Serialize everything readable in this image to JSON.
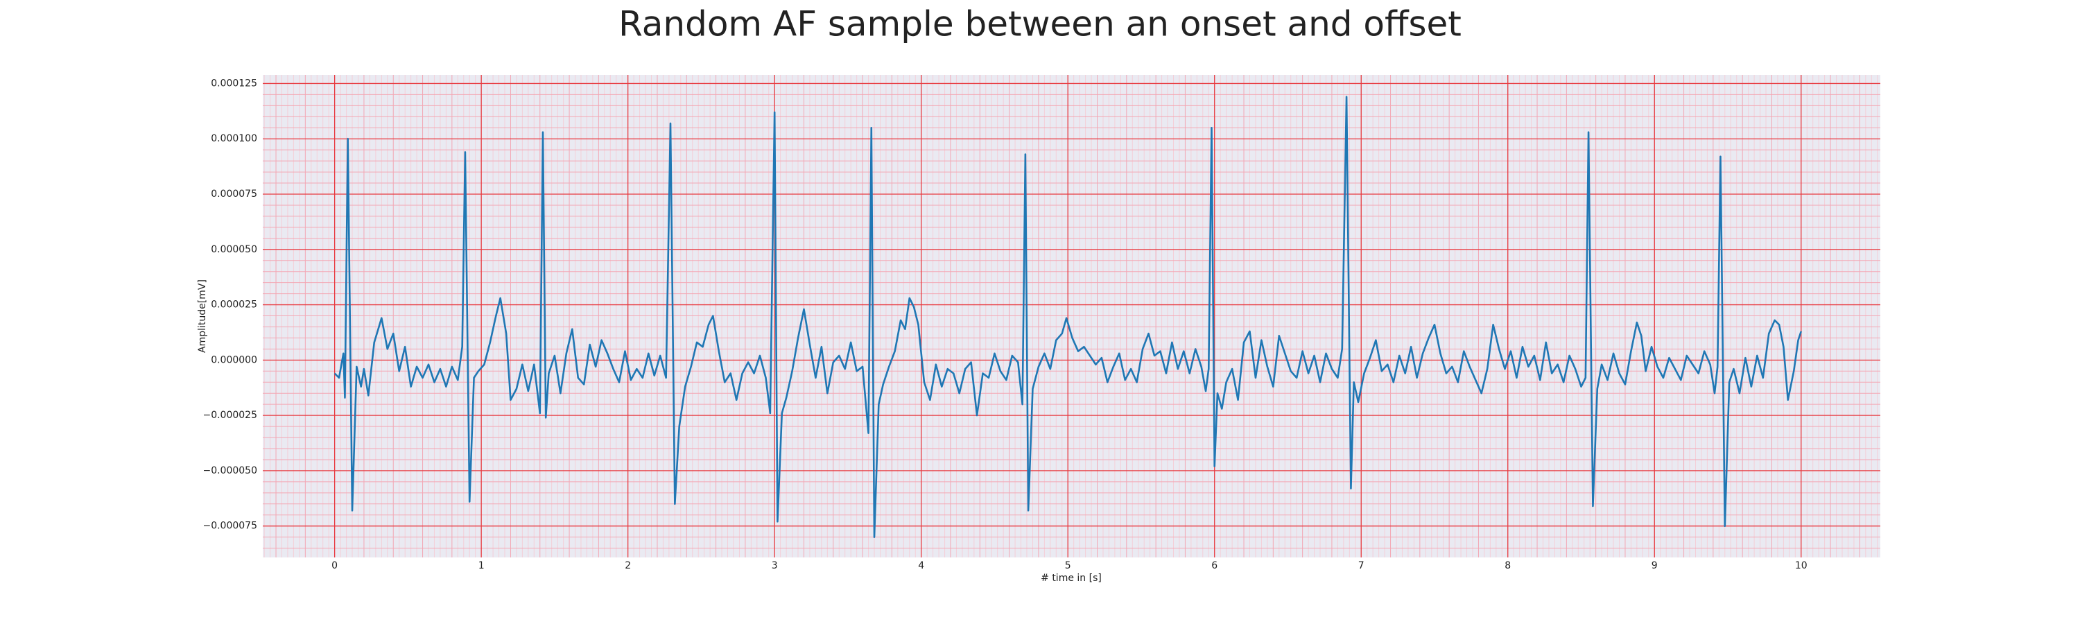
{
  "chart_data": {
    "type": "line",
    "title": "Random AF sample between an onset and offset",
    "x_label": "# time in [s]",
    "y_label": "Amplitude[mV]",
    "color": "#1f77b4",
    "grid": true,
    "minor_grid": true,
    "xlim": [
      -0.49,
      10.54
    ],
    "ylim": [
      -8.92e-05,
      0.0001289
    ],
    "xticks": [
      0,
      1,
      2,
      3,
      4,
      5,
      6,
      7,
      8,
      9,
      10
    ],
    "yticks": [
      {
        "value": -7.5e-05,
        "label": "−0.000075"
      },
      {
        "value": -5e-05,
        "label": "−0.000050"
      },
      {
        "value": -2.5e-05,
        "label": "−0.000025"
      },
      {
        "value": 0,
        "label": "0.000000"
      },
      {
        "value": 2.5e-05,
        "label": "0.000025"
      },
      {
        "value": 5e-05,
        "label": "0.000050"
      },
      {
        "value": 7.5e-05,
        "label": "0.000075"
      },
      {
        "value": 0.0001,
        "label": "0.000100"
      },
      {
        "value": 0.000125,
        "label": "0.000125"
      }
    ],
    "x": [
      0.0,
      0.03,
      0.06,
      0.07,
      0.09,
      0.12,
      0.15,
      0.18,
      0.2,
      0.23,
      0.27,
      0.32,
      0.36,
      0.4,
      0.44,
      0.48,
      0.52,
      0.56,
      0.6,
      0.64,
      0.68,
      0.72,
      0.76,
      0.8,
      0.84,
      0.87,
      0.89,
      0.92,
      0.95,
      0.98,
      1.02,
      1.06,
      1.1,
      1.13,
      1.17,
      1.2,
      1.24,
      1.28,
      1.32,
      1.36,
      1.4,
      1.42,
      1.44,
      1.46,
      1.5,
      1.54,
      1.58,
      1.62,
      1.66,
      1.7,
      1.74,
      1.78,
      1.82,
      1.86,
      1.9,
      1.94,
      1.98,
      2.02,
      2.06,
      2.1,
      2.14,
      2.18,
      2.22,
      2.26,
      2.29,
      2.32,
      2.35,
      2.39,
      2.43,
      2.47,
      2.51,
      2.55,
      2.58,
      2.62,
      2.66,
      2.7,
      2.74,
      2.78,
      2.82,
      2.86,
      2.9,
      2.94,
      2.97,
      3.0,
      3.02,
      3.05,
      3.08,
      3.12,
      3.16,
      3.2,
      3.24,
      3.28,
      3.32,
      3.36,
      3.4,
      3.44,
      3.48,
      3.52,
      3.56,
      3.6,
      3.64,
      3.66,
      3.68,
      3.71,
      3.74,
      3.78,
      3.82,
      3.86,
      3.89,
      3.92,
      3.95,
      3.98,
      4.02,
      4.06,
      4.1,
      4.14,
      4.18,
      4.22,
      4.26,
      4.3,
      4.34,
      4.38,
      4.42,
      4.46,
      4.5,
      4.54,
      4.58,
      4.62,
      4.66,
      4.69,
      4.71,
      4.73,
      4.76,
      4.8,
      4.84,
      4.88,
      4.92,
      4.96,
      4.99,
      5.03,
      5.07,
      5.11,
      5.15,
      5.19,
      5.23,
      5.27,
      5.31,
      5.35,
      5.39,
      5.43,
      5.47,
      5.51,
      5.55,
      5.59,
      5.63,
      5.67,
      5.71,
      5.75,
      5.79,
      5.83,
      5.87,
      5.91,
      5.94,
      5.96,
      5.98,
      6.0,
      6.02,
      6.05,
      6.08,
      6.12,
      6.16,
      6.2,
      6.24,
      6.28,
      6.32,
      6.36,
      6.4,
      6.44,
      6.48,
      6.52,
      6.56,
      6.6,
      6.64,
      6.68,
      6.72,
      6.76,
      6.8,
      6.84,
      6.87,
      6.9,
      6.93,
      6.95,
      6.98,
      7.02,
      7.06,
      7.1,
      7.14,
      7.18,
      7.22,
      7.26,
      7.3,
      7.34,
      7.38,
      7.42,
      7.46,
      7.5,
      7.54,
      7.58,
      7.62,
      7.66,
      7.7,
      7.74,
      7.78,
      7.82,
      7.86,
      7.9,
      7.94,
      7.98,
      8.02,
      8.06,
      8.1,
      8.14,
      8.18,
      8.22,
      8.26,
      8.3,
      8.34,
      8.38,
      8.42,
      8.46,
      8.5,
      8.53,
      8.55,
      8.58,
      8.61,
      8.64,
      8.68,
      8.72,
      8.76,
      8.8,
      8.84,
      8.88,
      8.91,
      8.94,
      8.98,
      9.02,
      9.06,
      9.1,
      9.14,
      9.18,
      9.22,
      9.26,
      9.3,
      9.34,
      9.38,
      9.41,
      9.43,
      9.45,
      9.48,
      9.51,
      9.54,
      9.58,
      9.62,
      9.66,
      9.7,
      9.74,
      9.78,
      9.82,
      9.85,
      9.88,
      9.91,
      9.95,
      9.98,
      10.0
    ],
    "values": [
      -6e-06,
      -8e-06,
      3e-06,
      -1.7e-05,
      0.0001,
      -6.8e-05,
      -3e-06,
      -1.2e-05,
      -4e-06,
      -1.6e-05,
      8e-06,
      1.9e-05,
      5e-06,
      1.2e-05,
      -5e-06,
      6e-06,
      -1.2e-05,
      -3e-06,
      -8e-06,
      -2e-06,
      -1e-05,
      -4e-06,
      -1.2e-05,
      -3e-06,
      -9e-06,
      6e-06,
      9.4e-05,
      -6.4e-05,
      -8e-06,
      -5e-06,
      -2e-06,
      8e-06,
      2e-05,
      2.8e-05,
      1.2e-05,
      -1.8e-05,
      -1.3e-05,
      -2e-06,
      -1.4e-05,
      -2e-06,
      -2.4e-05,
      0.000103,
      -2.6e-05,
      -6e-06,
      2e-06,
      -1.5e-05,
      3e-06,
      1.4e-05,
      -8e-06,
      -1.1e-05,
      7e-06,
      -3e-06,
      9e-06,
      3e-06,
      -4e-06,
      -1e-05,
      4e-06,
      -9e-06,
      -4e-06,
      -8e-06,
      3e-06,
      -7e-06,
      2e-06,
      -8e-06,
      0.000107,
      -6.5e-05,
      -3e-05,
      -1.2e-05,
      -3e-06,
      8e-06,
      6e-06,
      1.6e-05,
      2e-05,
      4e-06,
      -1e-05,
      -6e-06,
      -1.8e-05,
      -6e-06,
      -1e-06,
      -6e-06,
      2e-06,
      -8e-06,
      -2.4e-05,
      0.000112,
      -7.3e-05,
      -2.4e-05,
      -1.7e-05,
      -5e-06,
      1e-05,
      2.3e-05,
      7e-06,
      -8e-06,
      6e-06,
      -1.5e-05,
      -1e-06,
      2e-06,
      -4e-06,
      8e-06,
      -5e-06,
      -3e-06,
      -3.3e-05,
      0.000105,
      -8e-05,
      -2e-05,
      -1.1e-05,
      -3e-06,
      4e-06,
      1.8e-05,
      1.4e-05,
      2.8e-05,
      2.4e-05,
      1.6e-05,
      -1e-05,
      -1.8e-05,
      -2e-06,
      -1.2e-05,
      -4e-06,
      -6e-06,
      -1.5e-05,
      -4e-06,
      -1e-06,
      -2.5e-05,
      -6e-06,
      -8e-06,
      3e-06,
      -5e-06,
      -9e-06,
      2e-06,
      -1e-06,
      -2e-05,
      9.3e-05,
      -6.8e-05,
      -1.3e-05,
      -3e-06,
      3e-06,
      -4e-06,
      9e-06,
      1.2e-05,
      1.9e-05,
      1e-05,
      4e-06,
      6e-06,
      2e-06,
      -2e-06,
      1e-06,
      -1e-05,
      -3e-06,
      3e-06,
      -9e-06,
      -4e-06,
      -1e-05,
      5e-06,
      1.2e-05,
      2e-06,
      4e-06,
      -6e-06,
      8e-06,
      -4e-06,
      4e-06,
      -6e-06,
      5e-06,
      -3e-06,
      -1.4e-05,
      -4e-06,
      0.000105,
      -4.8e-05,
      -1.5e-05,
      -2.2e-05,
      -1e-05,
      -4e-06,
      -1.8e-05,
      8e-06,
      1.3e-05,
      -8e-06,
      9e-06,
      -3e-06,
      -1.2e-05,
      1.1e-05,
      3e-06,
      -5e-06,
      -8e-06,
      4e-06,
      -6e-06,
      2e-06,
      -1e-05,
      3e-06,
      -4e-06,
      -8e-06,
      5e-06,
      0.000119,
      -5.8e-05,
      -1e-05,
      -1.9e-05,
      -6e-06,
      1e-06,
      9e-06,
      -5e-06,
      -2e-06,
      -1e-05,
      2e-06,
      -6e-06,
      6e-06,
      -8e-06,
      3e-06,
      1e-05,
      1.6e-05,
      3e-06,
      -6e-06,
      -3e-06,
      -1e-05,
      4e-06,
      -3e-06,
      -9e-06,
      -1.5e-05,
      -4e-06,
      1.6e-05,
      5e-06,
      -4e-06,
      4e-06,
      -8e-06,
      6e-06,
      -3e-06,
      2e-06,
      -9e-06,
      8e-06,
      -6e-06,
      -2e-06,
      -1e-05,
      2e-06,
      -4e-06,
      -1.2e-05,
      -8e-06,
      0.000103,
      -6.6e-05,
      -1.3e-05,
      -2e-06,
      -9e-06,
      3e-06,
      -6e-06,
      -1.1e-05,
      4e-06,
      1.7e-05,
      1.1e-05,
      -5e-06,
      6e-06,
      -3e-06,
      -8e-06,
      1e-06,
      -4e-06,
      -9e-06,
      2e-06,
      -2e-06,
      -6e-06,
      4e-06,
      -2e-06,
      -1.5e-05,
      -3e-06,
      9.2e-05,
      -7.5e-05,
      -1e-05,
      -4e-06,
      -1.5e-05,
      1e-06,
      -1.2e-05,
      2e-06,
      -8e-06,
      1.2e-05,
      1.8e-05,
      1.6e-05,
      6e-06,
      -1.8e-05,
      -5e-06,
      9e-06,
      1.3e-05
    ]
  }
}
